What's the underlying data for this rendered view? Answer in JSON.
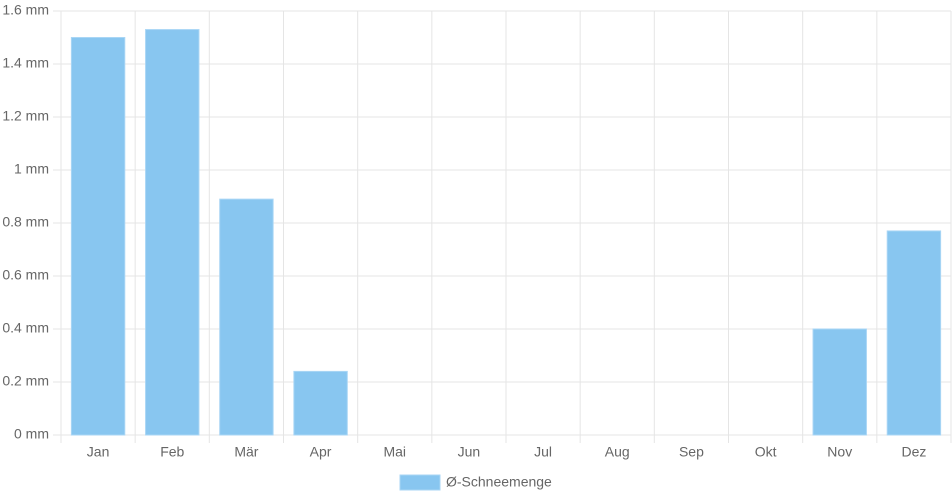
{
  "chart_data": {
    "type": "bar",
    "categories": [
      "Jan",
      "Feb",
      "Mär",
      "Apr",
      "Mai",
      "Jun",
      "Jul",
      "Aug",
      "Sep",
      "Okt",
      "Nov",
      "Dez"
    ],
    "series": [
      {
        "name": "Ø-Schneemenge",
        "color": "#88c6f0",
        "values": [
          1.5,
          1.53,
          0.89,
          0.24,
          0,
          0,
          0,
          0,
          0,
          0,
          0.4,
          0.77
        ]
      }
    ],
    "ylim": [
      0,
      1.6
    ],
    "yticks": [
      {
        "value": 0,
        "label": "0 mm"
      },
      {
        "value": 0.2,
        "label": "0.2 mm"
      },
      {
        "value": 0.4,
        "label": "0.4 mm"
      },
      {
        "value": 0.6,
        "label": "0.6 mm"
      },
      {
        "value": 0.8,
        "label": "0.8 mm"
      },
      {
        "value": 1,
        "label": "1 mm"
      },
      {
        "value": 1.2,
        "label": "1.2 mm"
      },
      {
        "value": 1.4,
        "label": "1.4 mm"
      },
      {
        "value": 1.6,
        "label": "1.6 mm"
      }
    ],
    "grid": true,
    "legend": "bottom"
  }
}
